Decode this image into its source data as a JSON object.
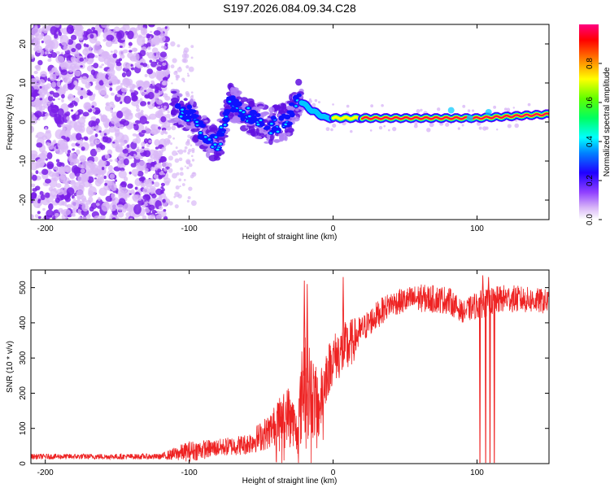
{
  "title": "S197.2026.084.09.34.C28",
  "colors": {
    "line": "#ee2222",
    "speckle": "#7a1ee8",
    "speckle_light": "#d9b8f7"
  },
  "chart_data": [
    {
      "type": "heatmap",
      "name": "spectrogram",
      "title": "S197.2026.084.09.34.C28",
      "xlabel": "Height of straight line (km)",
      "ylabel": "Frequency (Hz)",
      "xlim": [
        -210,
        150
      ],
      "ylim": [
        -25,
        25
      ],
      "xticks": [
        -200,
        -100,
        0,
        100
      ],
      "yticks": [
        -20,
        -10,
        0,
        10,
        20
      ],
      "colorbar": {
        "label": "Normalized spectral amplitude",
        "range": [
          0,
          1
        ],
        "ticks": [
          "0.0",
          "0.2",
          "0.4",
          "0.6",
          "0.8"
        ],
        "colormap": [
          "#ffffff",
          "#c080ff",
          "#7000ff",
          "#0000ff",
          "#00ffff",
          "#00ff00",
          "#ffff00",
          "#ff8000",
          "#ff0000",
          "#ff0088"
        ]
      },
      "ridge": [
        {
          "x": -110,
          "f": 4
        },
        {
          "x": -100,
          "f": 2
        },
        {
          "x": -90,
          "f": -3
        },
        {
          "x": -80,
          "f": -6
        },
        {
          "x": -72,
          "f": 5
        },
        {
          "x": -60,
          "f": 2
        },
        {
          "x": -45,
          "f": -1
        },
        {
          "x": -32,
          "f": 0
        },
        {
          "x": -25,
          "f": 6
        },
        {
          "x": -15,
          "f": 3
        },
        {
          "x": -5,
          "f": 1
        },
        {
          "x": 10,
          "f": 1
        },
        {
          "x": 50,
          "f": 1
        },
        {
          "x": 100,
          "f": 1
        },
        {
          "x": 150,
          "f": 2
        }
      ]
    },
    {
      "type": "line",
      "name": "snr",
      "xlabel": "Height of straight line (km)",
      "ylabel": "SNR (10 * v/v)",
      "xlim": [
        -210,
        150
      ],
      "ylim": [
        0,
        550
      ],
      "xticks": [
        -200,
        -100,
        0,
        100
      ],
      "yticks": [
        0,
        100,
        200,
        300,
        400,
        500
      ],
      "envelope": [
        {
          "x": -210,
          "mean": 20,
          "amp": 8
        },
        {
          "x": -120,
          "mean": 20,
          "amp": 8
        },
        {
          "x": -100,
          "mean": 35,
          "amp": 30
        },
        {
          "x": -80,
          "mean": 45,
          "amp": 25
        },
        {
          "x": -60,
          "mean": 55,
          "amp": 30
        },
        {
          "x": -45,
          "mean": 90,
          "amp": 50
        },
        {
          "x": -30,
          "mean": 150,
          "amp": 80
        },
        {
          "x": -25,
          "mean": 80,
          "amp": 60
        },
        {
          "x": -20,
          "mean": 250,
          "amp": 180
        },
        {
          "x": -15,
          "mean": 200,
          "amp": 130
        },
        {
          "x": -10,
          "mean": 150,
          "amp": 90
        },
        {
          "x": -5,
          "mean": 250,
          "amp": 80
        },
        {
          "x": 0,
          "mean": 300,
          "amp": 70
        },
        {
          "x": 10,
          "mean": 330,
          "amp": 80
        },
        {
          "x": 20,
          "mean": 380,
          "amp": 40
        },
        {
          "x": 30,
          "mean": 420,
          "amp": 40
        },
        {
          "x": 40,
          "mean": 455,
          "amp": 35
        },
        {
          "x": 60,
          "mean": 470,
          "amp": 40
        },
        {
          "x": 80,
          "mean": 465,
          "amp": 40
        },
        {
          "x": 90,
          "mean": 430,
          "amp": 30
        },
        {
          "x": 100,
          "mean": 450,
          "amp": 40
        },
        {
          "x": 120,
          "mean": 470,
          "amp": 40
        },
        {
          "x": 150,
          "mean": 460,
          "amp": 35
        }
      ],
      "spikes": [
        {
          "x": -20,
          "value": 520
        },
        {
          "x": -18,
          "value": 510
        },
        {
          "x": 7,
          "value": 530
        },
        {
          "x": 104,
          "value": 535
        },
        {
          "x": 108,
          "value": 530
        }
      ],
      "dropouts": [
        {
          "x": 102,
          "value": 2
        },
        {
          "x": 106,
          "value": 2
        },
        {
          "x": 109,
          "value": 2
        },
        {
          "x": 112,
          "value": 2
        }
      ]
    }
  ]
}
